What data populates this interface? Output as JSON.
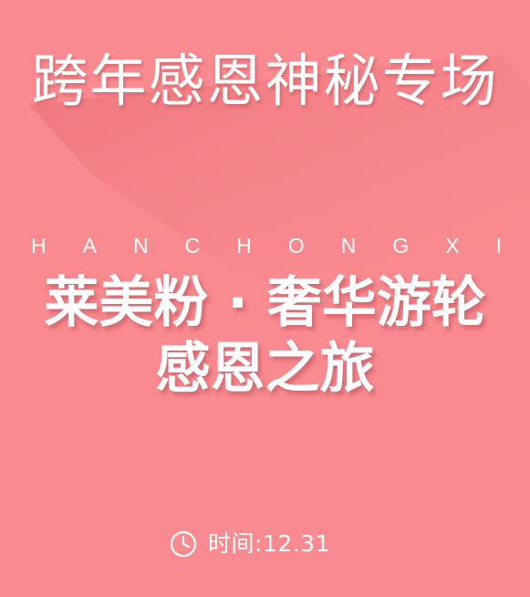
{
  "poster": {
    "title": "跨年感恩神秘专场",
    "pinyin_letters": [
      "H",
      "A",
      "N",
      "C",
      "H",
      "O",
      "N",
      "G",
      "X",
      "I"
    ],
    "headline_line1": "莱美粉 · 奢华游轮",
    "headline_line2": "感恩之旅",
    "time_label": "时间:12.31",
    "clock_icon": "clock-icon",
    "colors": {
      "background": "#f98a8f",
      "text": "#ffffff",
      "shadow": "#e9767d"
    }
  }
}
